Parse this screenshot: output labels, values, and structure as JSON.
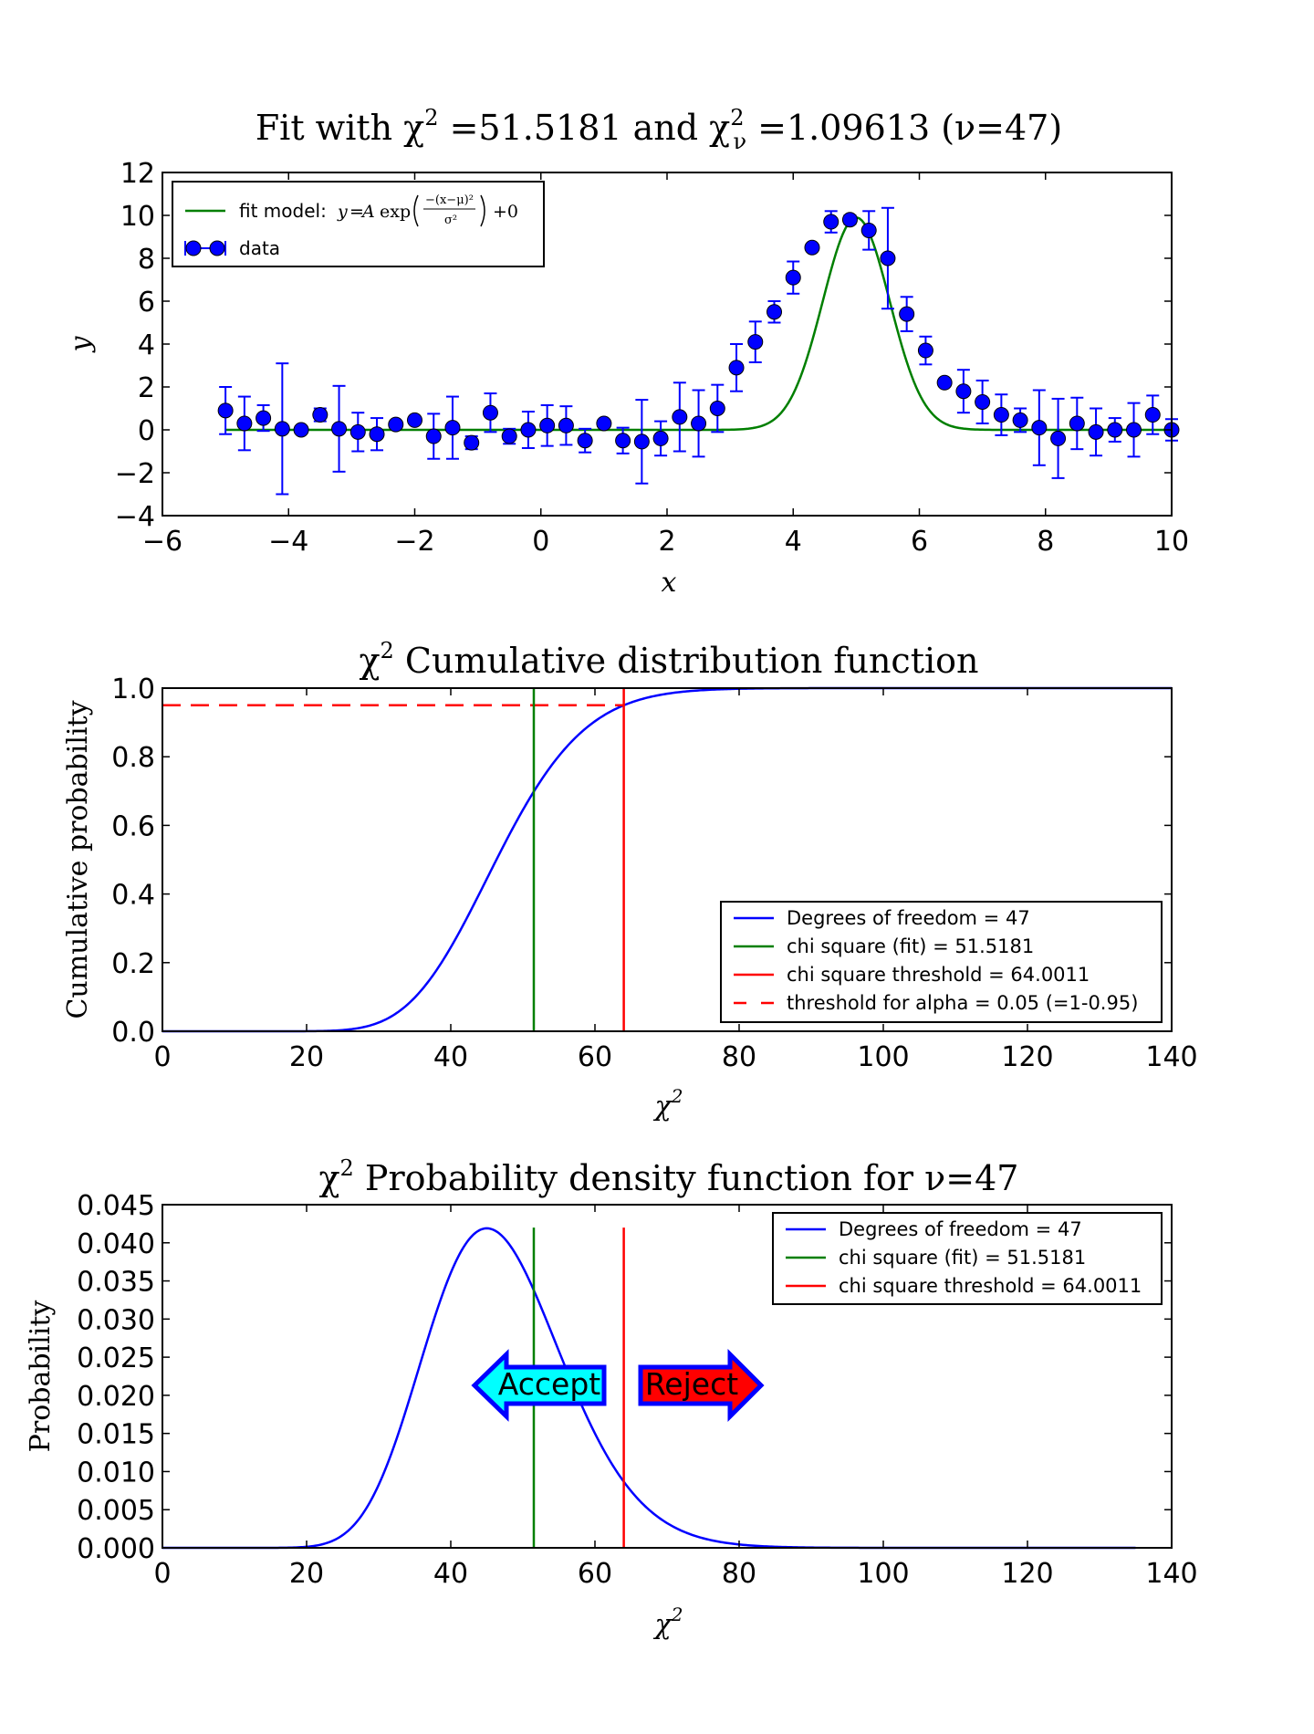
{
  "colors": {
    "blue": "#0000ff",
    "green": "#007f00",
    "red": "#ff0000",
    "cyan": "#00ffff",
    "black": "#000000"
  },
  "chart_data": [
    {
      "id": "fit",
      "type": "scatter",
      "title": "Fit with χ² =51.5181 and χ²ν =1.09613 (ν=47)",
      "xlabel": "x",
      "ylabel": "y",
      "xlim": [
        -6,
        10
      ],
      "ylim": [
        -4,
        12
      ],
      "xticks": [
        -6,
        -4,
        -2,
        0,
        2,
        4,
        6,
        8,
        10
      ],
      "xtick_labels": [
        "−6",
        "−4",
        "−2",
        "0",
        "2",
        "4",
        "6",
        "8",
        "10"
      ],
      "yticks": [
        -4,
        -2,
        0,
        2,
        4,
        6,
        8,
        10,
        12
      ],
      "ytick_labels": [
        "−4",
        "−2",
        "0",
        "2",
        "4",
        "6",
        "8",
        "10",
        "12"
      ],
      "legend": {
        "position": "upper left",
        "fit_label": "fit model: ",
        "fit_formula": "y = A exp(−(x−μ)²/σ²) + 0",
        "data_label": "data"
      },
      "fit_model": {
        "A": 9.9,
        "mu": 5.0,
        "sigma": 0.75,
        "offset": 0
      },
      "series": [
        {
          "name": "data",
          "x": [
            -5.0,
            -4.7,
            -4.4,
            -4.1,
            -3.8,
            -3.5,
            -3.2,
            -2.9,
            -2.6,
            -2.3,
            -2.0,
            -1.7,
            -1.4,
            -1.1,
            -0.8,
            -0.5,
            -0.2,
            0.1,
            0.4,
            0.7,
            1.0,
            1.3,
            1.6,
            1.9,
            2.2,
            2.5,
            2.8,
            3.1,
            3.4,
            3.7,
            4.0,
            4.3,
            4.6,
            4.9,
            5.2,
            5.5,
            5.8,
            6.1,
            6.4,
            6.7,
            7.0,
            7.3,
            7.6,
            7.9,
            8.2,
            8.5,
            8.8,
            9.1,
            9.4,
            9.7,
            10.0
          ],
          "y": [
            0.9,
            0.3,
            0.55,
            0.05,
            0.0,
            0.7,
            0.05,
            -0.1,
            -0.2,
            0.25,
            0.45,
            -0.3,
            0.1,
            -0.6,
            0.8,
            -0.3,
            0.0,
            0.2,
            0.2,
            -0.5,
            0.3,
            -0.5,
            -0.55,
            -0.4,
            0.6,
            0.3,
            1.0,
            2.9,
            4.1,
            5.5,
            7.1,
            8.5,
            9.7,
            9.8,
            9.3,
            8.0,
            5.4,
            3.7,
            2.2,
            1.8,
            1.3,
            0.7,
            0.45,
            0.1,
            -0.4,
            0.3,
            -0.1,
            0.0,
            0.0,
            0.7,
            0.0
          ],
          "err": [
            1.1,
            1.25,
            0.6,
            3.05,
            0.1,
            0.3,
            2.0,
            0.9,
            0.75,
            0.1,
            0.15,
            1.05,
            1.45,
            0.3,
            0.9,
            0.35,
            0.85,
            0.95,
            0.9,
            0.55,
            0.15,
            0.6,
            1.95,
            0.8,
            1.6,
            1.55,
            1.1,
            1.1,
            0.95,
            0.5,
            0.75,
            0.15,
            0.5,
            0.2,
            0.9,
            2.35,
            0.8,
            0.65,
            0.15,
            1.0,
            1.0,
            0.95,
            0.55,
            1.75,
            1.85,
            1.2,
            1.1,
            0.55,
            1.25,
            0.9,
            0.5
          ]
        }
      ]
    },
    {
      "id": "cdf",
      "type": "line",
      "title": "χ² Cumulative distribution function",
      "xlabel": "χ²",
      "ylabel": "Cumulative probability",
      "xlim": [
        0,
        140
      ],
      "ylim": [
        0.0,
        1.0
      ],
      "xticks": [
        0,
        20,
        40,
        60,
        80,
        100,
        120,
        140
      ],
      "xtick_labels": [
        "0",
        "20",
        "40",
        "60",
        "80",
        "100",
        "120",
        "140"
      ],
      "yticks": [
        0.0,
        0.2,
        0.4,
        0.6,
        0.8,
        1.0
      ],
      "ytick_labels": [
        "0.0",
        "0.2",
        "0.4",
        "0.6",
        "0.8",
        "1.0"
      ],
      "dof": 47,
      "chi2_fit": 51.5181,
      "chi2_threshold": 64.0011,
      "alpha_level": 0.95,
      "legend": {
        "position": "lower right",
        "entries": [
          "Degrees of freedom = 47",
          "chi square (fit) = 51.5181",
          "chi square threshold = 64.0011",
          "threshold for alpha = 0.05 (=1-0.95)"
        ]
      }
    },
    {
      "id": "pdf",
      "type": "line",
      "title": "χ² Probability density function for ν=47",
      "xlabel": "χ²",
      "ylabel": "Probability",
      "xlim": [
        0,
        140
      ],
      "ylim": [
        0.0,
        0.045
      ],
      "xticks": [
        0,
        20,
        40,
        60,
        80,
        100,
        120,
        140
      ],
      "xtick_labels": [
        "0",
        "20",
        "40",
        "60",
        "80",
        "100",
        "120",
        "140"
      ],
      "yticks": [
        0.0,
        0.005,
        0.01,
        0.015,
        0.02,
        0.025,
        0.03,
        0.035,
        0.04,
        0.045
      ],
      "ytick_labels": [
        "0.000",
        "0.005",
        "0.010",
        "0.015",
        "0.020",
        "0.025",
        "0.030",
        "0.035",
        "0.040",
        "0.045"
      ],
      "dof": 47,
      "x_max": 135,
      "chi2_fit": 51.5181,
      "chi2_threshold": 64.0011,
      "vline_top": 0.042,
      "accept_label": "Accept",
      "reject_label": "Reject",
      "legend": {
        "position": "upper right",
        "entries": [
          "Degrees of freedom = 47",
          "chi square (fit) = 51.5181",
          "chi square threshold = 64.0011"
        ]
      }
    }
  ]
}
